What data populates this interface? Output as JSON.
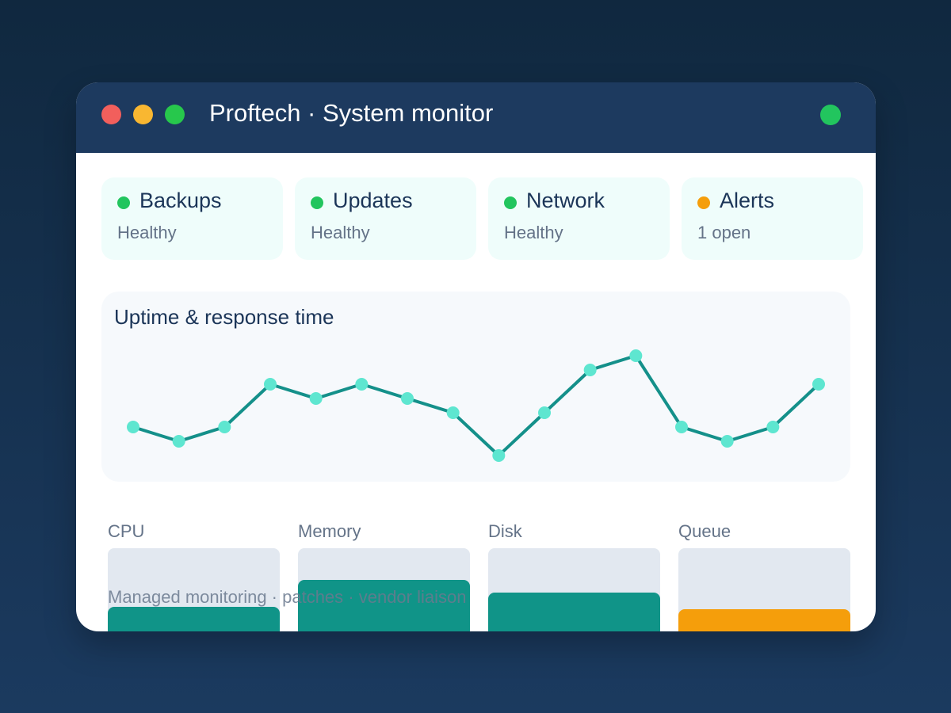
{
  "window": {
    "title": "Proftech · System monitor",
    "traffic_lights": [
      {
        "name": "close",
        "color": "#f25f5c"
      },
      {
        "name": "minimize",
        "color": "#f9b731"
      },
      {
        "name": "maximize",
        "color": "#27c84c"
      }
    ],
    "status_light_color": "#22c55e"
  },
  "status_cards": [
    {
      "name": "Backups",
      "state": "Healthy",
      "color": "#22c55e"
    },
    {
      "name": "Updates",
      "state": "Healthy",
      "color": "#22c55e"
    },
    {
      "name": "Network",
      "state": "Healthy",
      "color": "#22c55e"
    },
    {
      "name": "Alerts",
      "state": "1 open",
      "color": "#f59e0b"
    }
  ],
  "chart_data": {
    "type": "line",
    "title": "Uptime & response time",
    "values": [
      3,
      2,
      3,
      6,
      5,
      6,
      5,
      4,
      1,
      4,
      7,
      8,
      3,
      2,
      3,
      6
    ],
    "ylim": [
      0,
      10
    ],
    "grid": false,
    "line_color": "#14908a",
    "point_color": "#5ee6d0"
  },
  "meters": [
    {
      "label": "CPU",
      "level": 0.34,
      "color": "#109488"
    },
    {
      "label": "Memory",
      "level": 0.64,
      "color": "#109488"
    },
    {
      "label": "Disk",
      "level": 0.5,
      "color": "#109488"
    },
    {
      "label": "Queue",
      "level": 0.31,
      "color": "#f59e0b"
    }
  ],
  "footer": {
    "text": "Managed monitoring · patches · vendor liaison"
  }
}
